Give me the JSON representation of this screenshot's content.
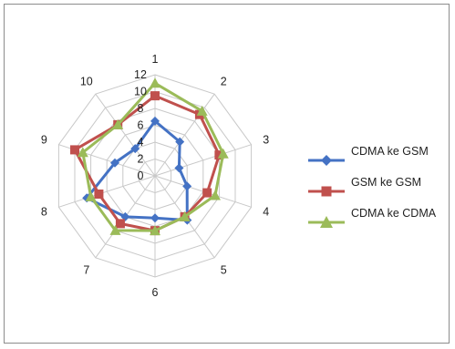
{
  "chart_data": {
    "type": "radar",
    "categories": [
      "1",
      "2",
      "3",
      "4",
      "5",
      "6",
      "7",
      "8",
      "9",
      "10"
    ],
    "radial_ticks": [
      0,
      2,
      4,
      6,
      8,
      10,
      12
    ],
    "rmax": 12,
    "series": [
      {
        "name": "CDMA ke GSM",
        "color": "#4472c4",
        "marker": "diamond",
        "values": [
          6.5,
          5.0,
          3.0,
          4.0,
          6.5,
          5.0,
          6.0,
          8.5,
          5.0,
          4.0
        ]
      },
      {
        "name": "GSM ke GSM",
        "color": "#c0504d",
        "marker": "square",
        "values": [
          9.5,
          9.0,
          8.0,
          6.5,
          6.0,
          6.5,
          7.0,
          7.0,
          10.0,
          7.5
        ]
      },
      {
        "name": "CDMA ke CDMA",
        "color": "#9bbb59",
        "marker": "triangle",
        "values": [
          11.0,
          9.5,
          8.5,
          7.5,
          6.0,
          6.5,
          8.0,
          8.0,
          9.0,
          7.5
        ]
      }
    ],
    "legend_position": "right",
    "grid": true
  }
}
